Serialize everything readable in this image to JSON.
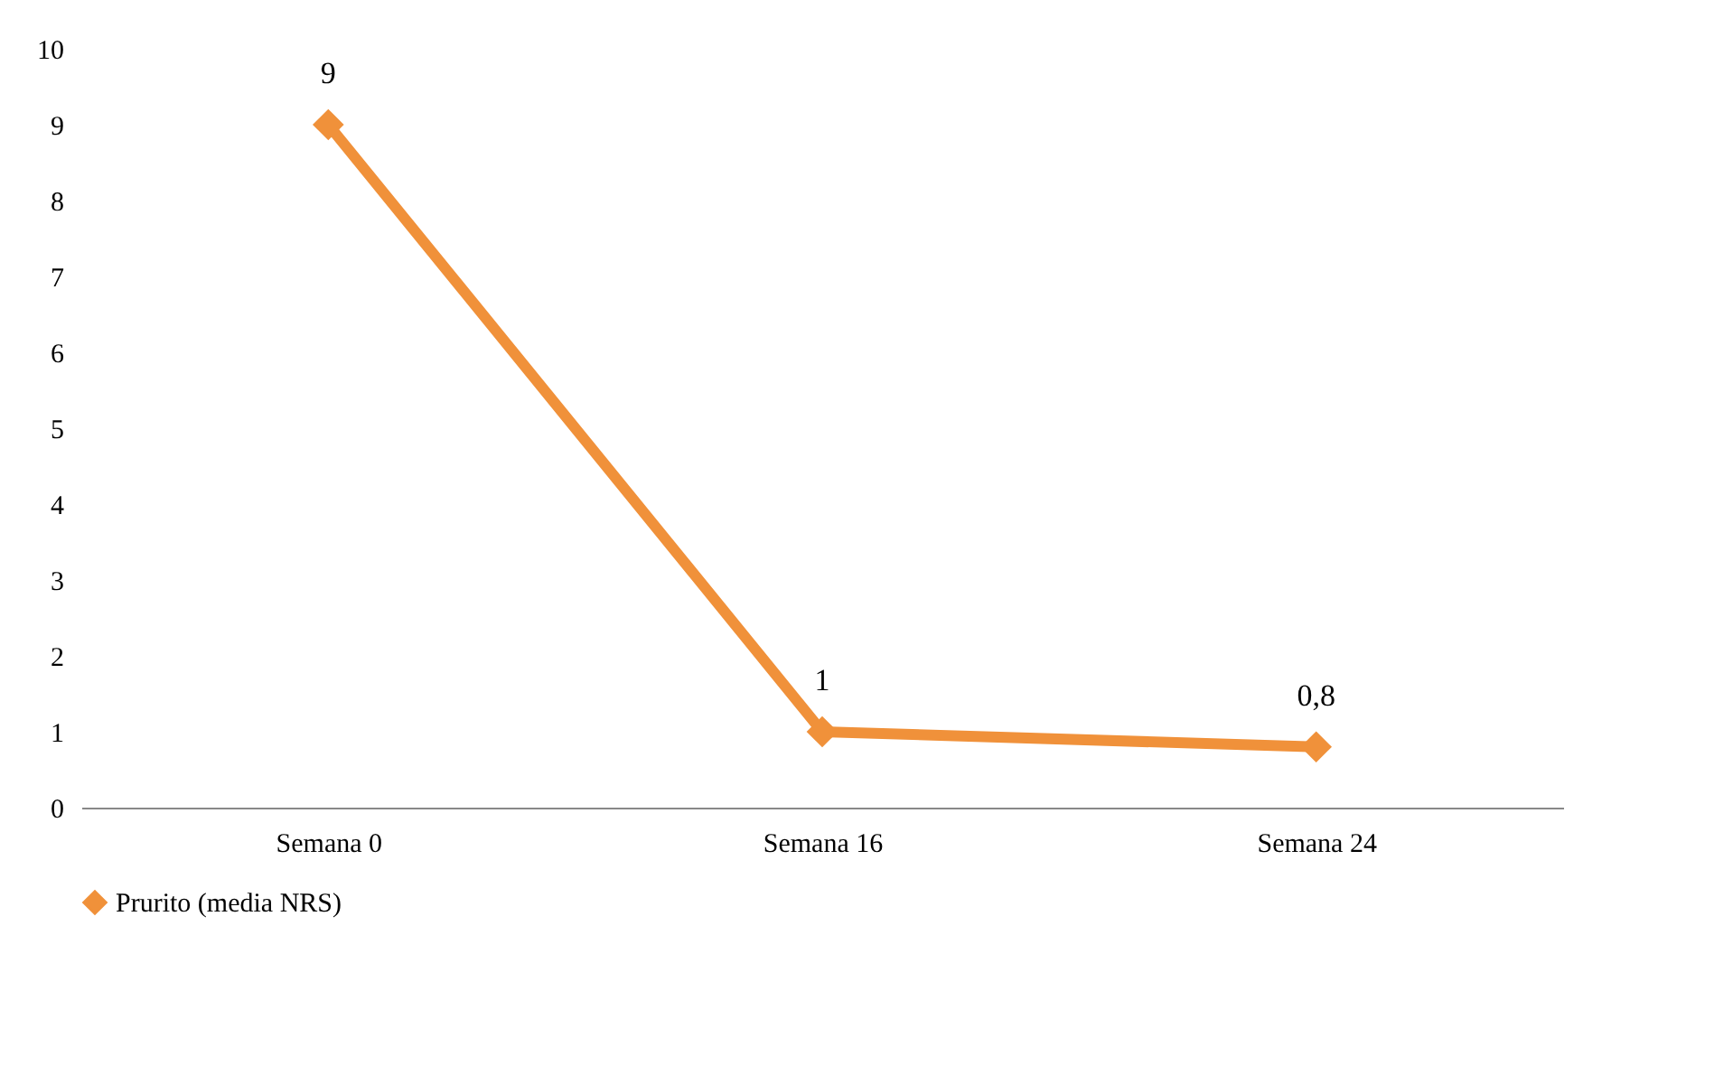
{
  "chart_data": {
    "type": "line",
    "categories": [
      "Semana 0",
      "Semana 16",
      "Semana 24"
    ],
    "series": [
      {
        "name": "Prurito (media NRS)",
        "color": "#f0913a",
        "values": [
          9,
          1,
          0.8
        ],
        "value_labels": [
          "9",
          "1",
          "0,8"
        ]
      }
    ],
    "ylim": [
      0,
      10
    ],
    "yticks": [
      0,
      1,
      2,
      3,
      4,
      5,
      6,
      7,
      8,
      9,
      10
    ],
    "grid": false,
    "legend": "bottom",
    "marker": "diamond",
    "line_style": "solid"
  }
}
